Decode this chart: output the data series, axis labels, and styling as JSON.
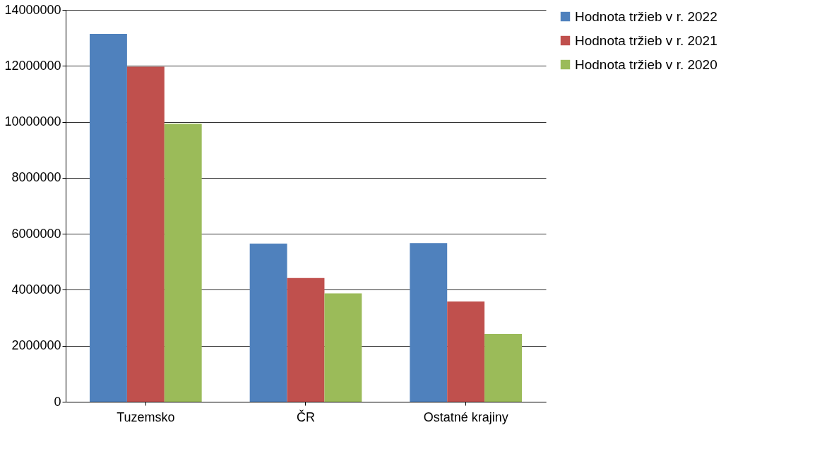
{
  "chart_data": {
    "type": "bar",
    "categories": [
      "Tuzemsko",
      "ČR",
      "Ostatné krajiny"
    ],
    "series": [
      {
        "name": "Hodnota tržieb v r. 2022",
        "color": "#4f81bd",
        "values": [
          13140000,
          5650000,
          5670000
        ]
      },
      {
        "name": "Hodnota tržieb v r. 2021",
        "color": "#c0504d",
        "values": [
          11970000,
          4420000,
          3580000
        ]
      },
      {
        "name": "Hodnota tržieb v r. 2020",
        "color": "#9bbb59",
        "values": [
          9930000,
          3870000,
          2420000
        ]
      }
    ],
    "ylim": [
      0,
      14000000
    ],
    "yticks": [
      0,
      2000000,
      4000000,
      6000000,
      8000000,
      10000000,
      12000000,
      14000000
    ],
    "grid": "y",
    "legend": "right"
  }
}
